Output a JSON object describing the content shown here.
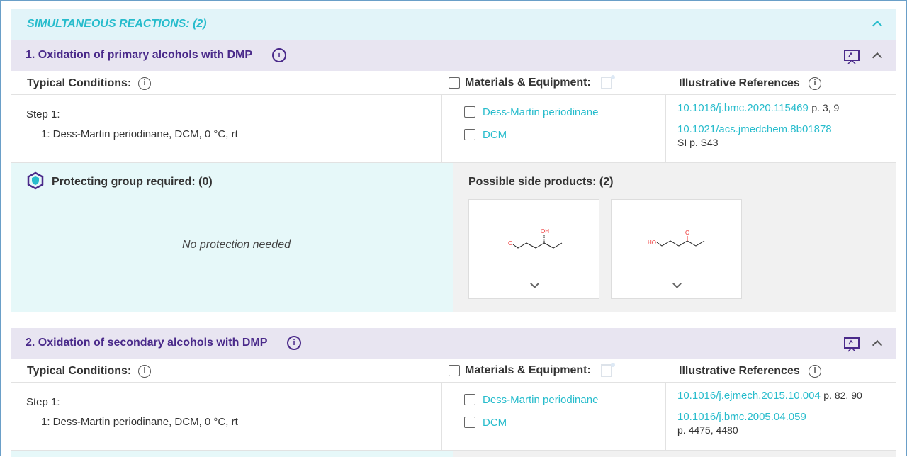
{
  "header": {
    "title": "SIMULTANEOUS REACTIONS: (2)",
    "collapse_icon": "chevron-up-icon"
  },
  "colors": {
    "accent": "#27bccc",
    "reaction_title": "#4a2a8a",
    "header_bg": "#e2f4f9",
    "reaction_bg": "#e8e5f1"
  },
  "reactions": [
    {
      "title": "1. Oxidation of primary alcohols with DMP",
      "conditions_label": "Typical Conditions:",
      "step": "Step 1:",
      "step_detail": "1: Dess-Martin periodinane, DCM, 0 °C, rt",
      "materials_label": "Materials & Equipment:",
      "materials": [
        "Dess-Martin periodinane",
        "DCM"
      ],
      "references_label": "Illustrative References",
      "references": [
        {
          "doi": "10.1016/j.bmc.2020.115469",
          "pages": "p. 3, 9"
        },
        {
          "doi": "10.1021/acs.jmedchem.8b01878",
          "pages": "SI p. S43"
        }
      ],
      "protecting_label": "Protecting group required: (0)",
      "protecting_empty": "No protection needed",
      "side_products_label": "Possible side products: (2)",
      "side_products": [
        {
          "labels": [
            "O",
            "OH"
          ]
        },
        {
          "labels": [
            "HO",
            "O"
          ]
        }
      ]
    },
    {
      "title": "2. Oxidation of secondary alcohols with DMP",
      "conditions_label": "Typical Conditions:",
      "step": "Step 1:",
      "step_detail": "1: Dess-Martin periodinane, DCM, 0 °C, rt",
      "materials_label": "Materials & Equipment:",
      "materials": [
        "Dess-Martin periodinane",
        "DCM"
      ],
      "references_label": "Illustrative References",
      "references": [
        {
          "doi": "10.1016/j.ejmech.2015.10.004",
          "pages": "p. 82, 90"
        },
        {
          "doi": "10.1016/j.bmc.2005.04.059",
          "pages": "p. 4475, 4480"
        }
      ]
    }
  ]
}
